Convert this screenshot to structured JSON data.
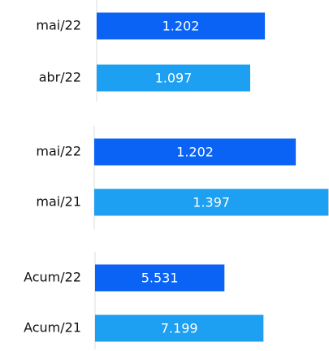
{
  "chart_data": [
    {
      "type": "bar",
      "orientation": "horizontal",
      "categories": [
        "mai/22",
        "abr/22"
      ],
      "values": [
        1202,
        1097
      ],
      "value_labels": [
        "1.202",
        "1.097"
      ],
      "colors": [
        "#0a63f5",
        "#1d9ff2"
      ],
      "xlim": [
        0,
        1660
      ]
    },
    {
      "type": "bar",
      "orientation": "horizontal",
      "categories": [
        "mai/22",
        "mai/21"
      ],
      "values": [
        1202,
        1397
      ],
      "value_labels": [
        "1.202",
        "1.397"
      ],
      "colors": [
        "#0a63f5",
        "#1d9ff2"
      ],
      "xlim": [
        0,
        1400
      ]
    },
    {
      "type": "bar",
      "orientation": "horizontal",
      "categories": [
        "Acum/22",
        "Acum/21"
      ],
      "values": [
        5531,
        7199
      ],
      "value_labels": [
        "5.531",
        "7.199"
      ],
      "colors": [
        "#0a63f5",
        "#1d9ff2"
      ],
      "xlim": [
        0,
        10000
      ]
    }
  ]
}
